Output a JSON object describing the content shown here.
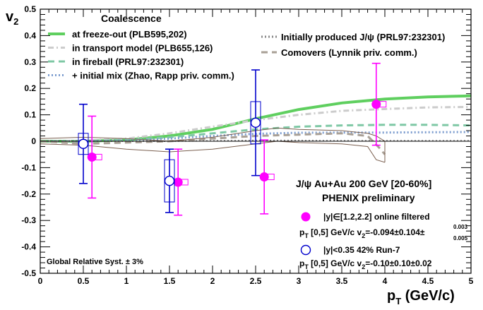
{
  "chart_data": {
    "type": "scatter",
    "xlabel_main": "p",
    "xlabel_sub": "T",
    "xlabel_unit": " (GeV/c)",
    "ylabel_main": "v",
    "ylabel_sub": "2",
    "xlim": [
      0,
      5
    ],
    "ylim": [
      -0.5,
      0.5
    ],
    "x_ticks": [
      "0",
      "0.5",
      "1",
      "1.5",
      "2",
      "2.5",
      "3",
      "3.5",
      "4",
      "4.5",
      "5"
    ],
    "y_ticks": [
      "-0.5",
      "-0.4",
      "-0.3",
      "-0.2",
      "-0.1",
      "0",
      "0.1",
      "0.2",
      "0.3",
      "0.4",
      "0.5"
    ],
    "legend_left_title": "Coalescence",
    "legend_left": [
      {
        "label": "at freeze-out (PLB595,202)",
        "color": "#5fcf5f",
        "style": "solid"
      },
      {
        "label": "in transport model (PLB655,126)",
        "color": "#cccccc",
        "style": "dashdot"
      },
      {
        "label": "in fireball (PRL97:232301)",
        "color": "#7fc8a5",
        "style": "dashed"
      },
      {
        "label": "+ initial mix (Zhao, Rapp priv. comm.)",
        "color": "#7d9dcf",
        "style": "dotted"
      }
    ],
    "legend_right": [
      {
        "label": "Initially produced J/ψ  (PRL97:232301)",
        "color": "#888888",
        "style": "dotted"
      },
      {
        "label": "Comovers (Lynnik priv. comm.)",
        "color": "#a9a096",
        "style": "dashed"
      }
    ],
    "annotation_title": "J/ψ  Au+Au 200 GeV [20-60%]",
    "annotation_subtitle": "PHENIX preliminary",
    "legend_points": [
      {
        "label": "|y|∈[1.2,2.2] online filtered",
        "result_prefix": "p",
        "result_sub": "T",
        "result_mid": " [0,5] GeV/c  v",
        "result_sub2": "2",
        "result_value": "=-0.094±0.104±",
        "result_sup": "0.003",
        "result_sub3": "0.005"
      },
      {
        "label": "|y|<0.35 42% Run-7",
        "result_prefix": "p",
        "result_sub": "T",
        "result_mid": " [0,5] GeV/c  v",
        "result_sub2": "2",
        "result_value": "=-0.10±0.10±0.02"
      }
    ],
    "syst_note": "Global Relative Syst. ± 3%",
    "series": [
      {
        "name": "|y|∈[1.2,2.2] online filtered",
        "color": "#ff00ff",
        "marker": "filled-circle",
        "points": [
          {
            "x": 0.6,
            "y": -0.06,
            "err": 0.155,
            "syst_lo": 0.005,
            "syst_hi": 0.005
          },
          {
            "x": 1.6,
            "y": -0.155,
            "err": 0.125,
            "syst_lo": 0.005,
            "syst_hi": 0.005
          },
          {
            "x": 2.6,
            "y": -0.135,
            "err": 0.14,
            "syst_lo": 0.005,
            "syst_hi": 0.005
          },
          {
            "x": 3.9,
            "y": 0.14,
            "err": 0.155,
            "syst_lo": 0.005,
            "syst_hi": 0.005
          }
        ]
      },
      {
        "name": "|y|<0.35 42% Run-7",
        "color": "#0000cc",
        "marker": "open-circle",
        "points": [
          {
            "x": 0.5,
            "y": -0.01,
            "err": 0.15,
            "syst": 0.04
          },
          {
            "x": 1.5,
            "y": -0.15,
            "err": 0.12,
            "syst": 0.08
          },
          {
            "x": 2.5,
            "y": 0.07,
            "err": 0.2,
            "syst": 0.08
          }
        ]
      }
    ],
    "curves": [
      {
        "name": "at freeze-out (PLB595,202)",
        "color": "#5fcf5f",
        "style": "solid",
        "x": [
          0,
          0.5,
          1,
          1.5,
          2,
          2.5,
          3,
          3.5,
          4,
          4.5,
          5
        ],
        "y": [
          0,
          0.0,
          0.005,
          0.02,
          0.045,
          0.085,
          0.12,
          0.145,
          0.16,
          0.168,
          0.172
        ]
      },
      {
        "name": "in transport model (PLB655,126)",
        "color": "#cccccc",
        "style": "dashdot",
        "x": [
          0,
          0.5,
          1,
          1.5,
          2,
          2.5,
          3,
          3.5,
          4,
          4.5,
          5
        ],
        "y": [
          0,
          0.002,
          0.01,
          0.03,
          0.055,
          0.08,
          0.1,
          0.115,
          0.122,
          0.128,
          0.13
        ]
      },
      {
        "name": "in fireball (PRL97:232301)",
        "color": "#7fc8a5",
        "style": "dashed",
        "x": [
          0,
          0.5,
          1,
          1.5,
          2,
          2.5,
          3,
          3.5,
          4,
          4.5,
          5
        ],
        "y": [
          0,
          0.0,
          0.005,
          0.015,
          0.03,
          0.045,
          0.055,
          0.06,
          0.062,
          0.062,
          0.06
        ]
      },
      {
        "name": "+ initial mix (Zhao, Rapp priv. comm.)",
        "color": "#7d9dcf",
        "style": "dotted",
        "x": [
          0,
          0.5,
          1,
          1.5,
          2,
          2.5,
          3,
          3.5,
          4,
          4.5,
          5
        ],
        "y": [
          0,
          0.0,
          0.003,
          0.01,
          0.02,
          0.028,
          0.032,
          0.033,
          0.033,
          0.034,
          0.035
        ]
      },
      {
        "name": "Initially produced J/ψ  (PRL97:232301)",
        "color": "#888888",
        "style": "dotted",
        "x": [
          0,
          0.5,
          1,
          1.5,
          2,
          2.5,
          3,
          3.5,
          4,
          4.5,
          5
        ],
        "y": [
          0,
          0.0,
          0.0,
          0.0,
          0.002,
          0.003,
          0.003,
          0.002,
          0.002,
          0.002,
          0.002
        ]
      },
      {
        "name": "Comovers (Lynnik priv. comm.)",
        "color": "#a9a096",
        "style": "dashed",
        "x": [
          0,
          0.5,
          1,
          1.5,
          2,
          2.5,
          3,
          3.5,
          3.8,
          3.95,
          4.0
        ],
        "y": [
          0,
          -0.01,
          -0.005,
          0.0,
          0.01,
          0.02,
          0.025,
          0.03,
          0.02,
          -0.03,
          -0.05
        ]
      }
    ],
    "band": {
      "color": "#7a5f4f",
      "x": [
        0,
        0.5,
        1,
        1.5,
        2,
        2.5,
        2.75,
        3,
        3.5,
        3.8,
        3.9,
        4.0
      ],
      "upper": [
        0.01,
        0.015,
        0.01,
        0.0,
        0.015,
        0.04,
        0.05,
        0.045,
        0.04,
        0.03,
        0.02,
        0.0
      ],
      "lower": [
        -0.01,
        -0.015,
        -0.03,
        -0.04,
        -0.03,
        -0.01,
        0.0,
        -0.005,
        -0.01,
        -0.02,
        -0.07,
        -0.08
      ]
    }
  }
}
